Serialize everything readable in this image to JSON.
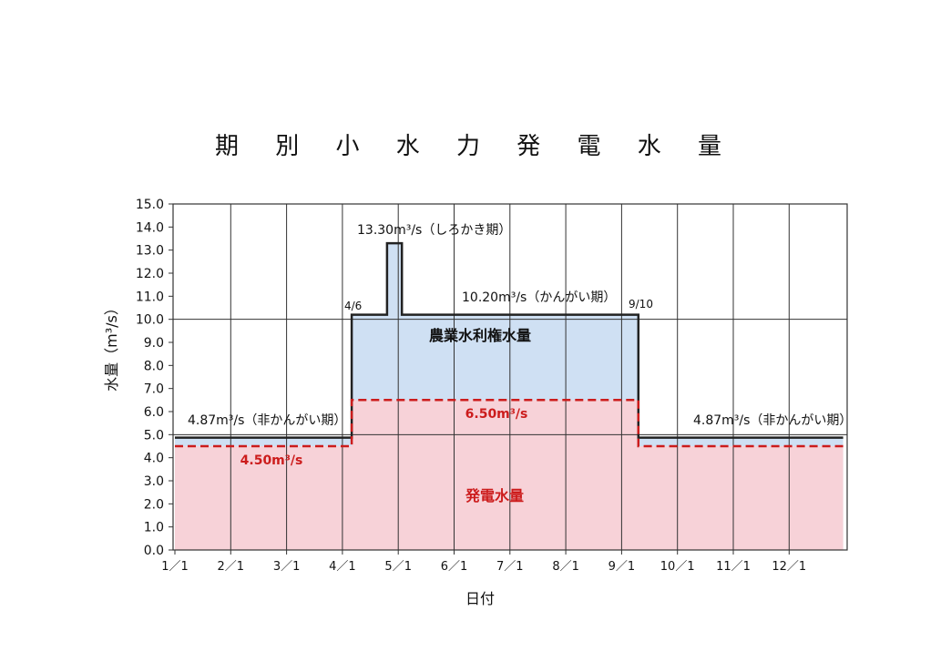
{
  "title": "期 別 小 水 力 発 電 水 量",
  "chart_data": {
    "type": "area",
    "ylabel": "水量（m³/s）",
    "xlabel": "日付",
    "ylim": [
      0,
      15
    ],
    "y_ticks": [
      "0.0",
      "1.0",
      "2.0",
      "3.0",
      "4.0",
      "5.0",
      "6.0",
      "7.0",
      "8.0",
      "9.0",
      "10.0",
      "11.0",
      "12.0",
      "13.0",
      "14.0",
      "15.0"
    ],
    "x_ticks": [
      "1／1",
      "2／1",
      "3／1",
      "4／1",
      "5／1",
      "6／1",
      "7／1",
      "8／1",
      "9／1",
      "10／1",
      "11／1",
      "12／1"
    ],
    "grid": true,
    "series": [
      {
        "name": "農業水利権水量",
        "color": "#cfe0f3",
        "line_color": "#222222",
        "points": [
          {
            "x": "01-01",
            "y": 4.87
          },
          {
            "x": "04-06",
            "y": 4.87
          },
          {
            "x": "04-06",
            "y": 10.2
          },
          {
            "x": "04-25",
            "y": 10.2
          },
          {
            "x": "04-25",
            "y": 13.3
          },
          {
            "x": "05-03",
            "y": 13.3
          },
          {
            "x": "05-03",
            "y": 10.2
          },
          {
            "x": "09-10",
            "y": 10.2
          },
          {
            "x": "09-10",
            "y": 4.87
          },
          {
            "x": "12-31",
            "y": 4.87
          }
        ]
      },
      {
        "name": "発電水量",
        "color": "#f7d2d8",
        "line_color": "#cc1c1c",
        "points": [
          {
            "x": "01-01",
            "y": 4.5
          },
          {
            "x": "04-06",
            "y": 4.5
          },
          {
            "x": "04-06",
            "y": 6.5
          },
          {
            "x": "09-10",
            "y": 6.5
          },
          {
            "x": "09-10",
            "y": 4.5
          },
          {
            "x": "12-31",
            "y": 4.5
          }
        ]
      }
    ],
    "annotations": {
      "peak": "13.30m³/s（しろかき期）",
      "irrigation": "10.20m³/s（かんがい期）",
      "non_irrigation_left": "4.87m³/s（非かんがい期）",
      "non_irrigation_right": "4.87m³/s（非かんがい期）",
      "power_mid": "6.50m³/s",
      "power_low": "4.50m³/s",
      "start_date": "4/6",
      "end_date": "9/10"
    }
  }
}
